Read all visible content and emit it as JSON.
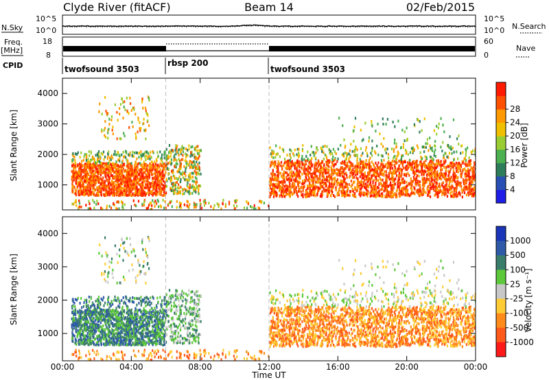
{
  "header": {
    "station": "Clyde River (fitACF)",
    "beam": "Beam 14",
    "date": "02/Feb/2015"
  },
  "aux_panels": {
    "nsky_label": "N.Sky",
    "nsky_ticks": [
      "10^5",
      "10^0"
    ],
    "nsearch_ticks": [
      "10^5",
      "10^0"
    ],
    "nsearch_label": "N.Search",
    "freq_label": "Freq.",
    "freq_unit": "[MHz]",
    "freq_ticks": [
      "18",
      "8"
    ],
    "nave_ticks": [
      "60",
      "0"
    ],
    "nave_label": "Nave",
    "cpid_label": "CPID",
    "cpid_segments": [
      {
        "name": "twofsound 3503",
        "start": 0,
        "end": 6
      },
      {
        "name": "rbsp 200",
        "start": 6,
        "end": 12
      },
      {
        "name": "twofsound 3503",
        "start": 12,
        "end": 24
      }
    ]
  },
  "chart_data": [
    {
      "type": "heatmap",
      "title": "",
      "ylabel": "Slant Range [km]",
      "xlabel": "",
      "xlim": [
        0,
        24
      ],
      "ylim": [
        180,
        4500
      ],
      "yticks": [
        "1000",
        "2000",
        "3000",
        "4000"
      ],
      "colorbar": {
        "label": "Power [dB]",
        "ticks": [
          "4",
          "8",
          "12",
          "16",
          "20",
          "24",
          "28"
        ],
        "colors": [
          "#1e1ee6",
          "#2850b4",
          "#2e7d5a",
          "#4caf50",
          "#9acd32",
          "#f0c000",
          "#ff9900",
          "#ff5000",
          "#ff1a00"
        ]
      }
    },
    {
      "type": "heatmap",
      "title": "",
      "ylabel": "Slant Range [km]",
      "xlabel": "Time UT",
      "xlim": [
        0,
        24
      ],
      "ylim": [
        180,
        4500
      ],
      "yticks": [
        "1000",
        "2000",
        "3000",
        "4000"
      ],
      "xticks": [
        "00:00",
        "04:00",
        "08:00",
        "12:00",
        "16:00",
        "20:00",
        "00:00"
      ],
      "colorbar": {
        "label": "Velocity [m s⁻¹]",
        "ticks": [
          "1000",
          "500",
          "100",
          "25",
          "-25",
          "-100",
          "-500",
          "-1000"
        ],
        "colors": [
          "#1a35b8",
          "#2e5aa8",
          "#3a7d6a",
          "#5cc83a",
          "#c8c8c8",
          "#ffcc33",
          "#ff8c1a",
          "#ff5a1a",
          "#ff1a1a"
        ]
      }
    }
  ]
}
